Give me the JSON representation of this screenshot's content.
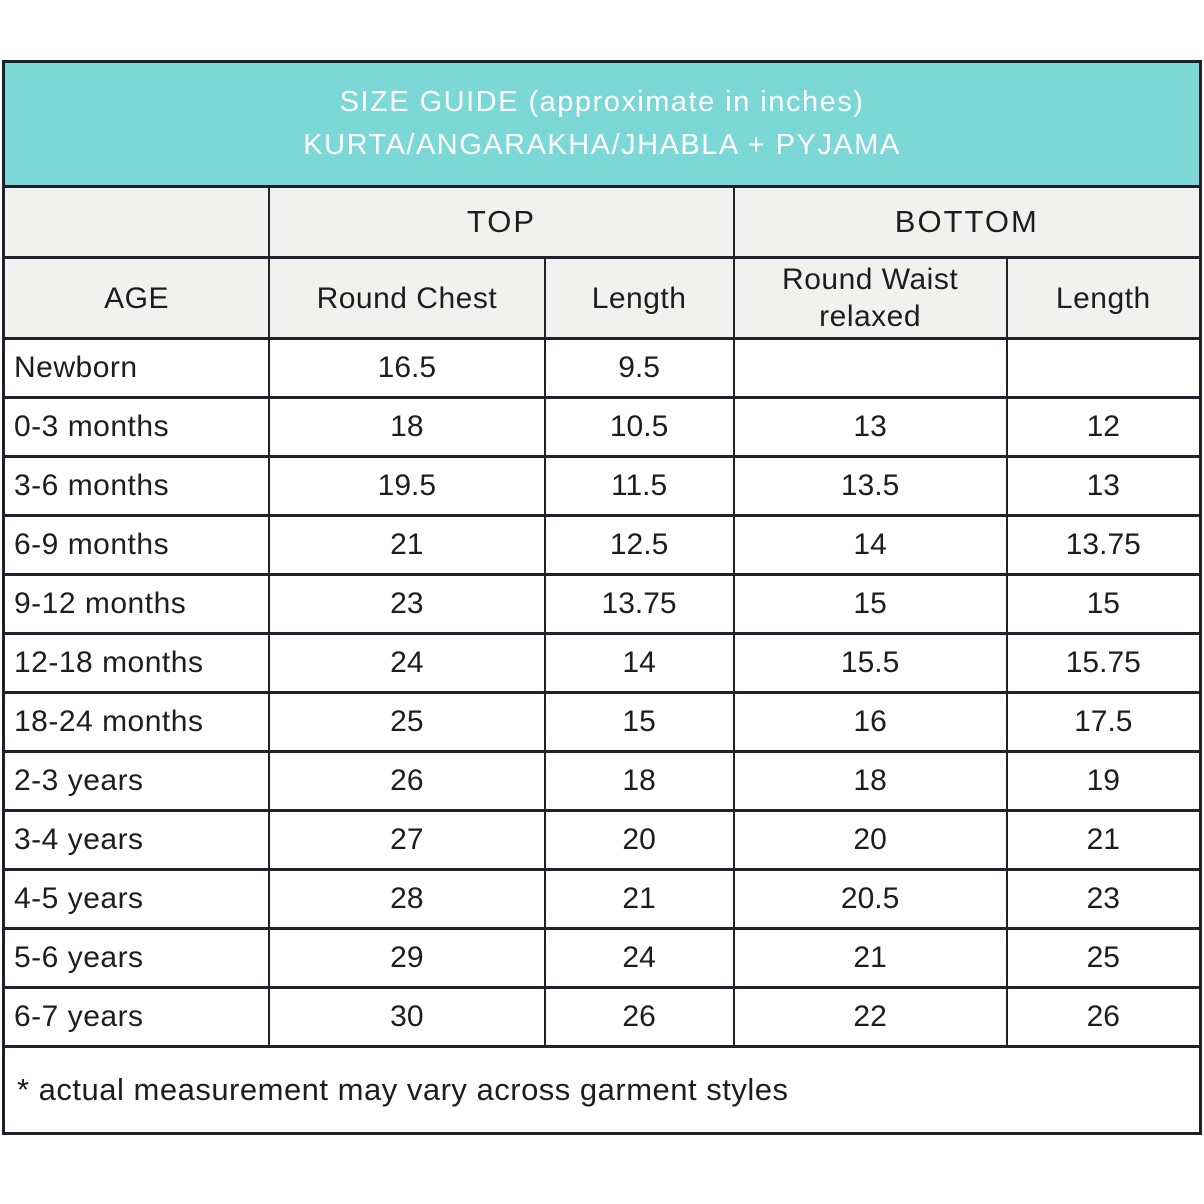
{
  "colors": {
    "accent": "#7bd8d6",
    "header_bg": "#f1f1f0",
    "border": "#21212b",
    "title_text": "#ffffff",
    "body_text": "#1d1d1f"
  },
  "title": {
    "line1": "SIZE GUIDE (approximate in inches)",
    "line2": "KURTA/ANGARAKHA/JHABLA + PYJAMA"
  },
  "footnote": "* actual measurement may vary across garment styles",
  "chart_data": {
    "type": "table",
    "title": "SIZE GUIDE (approximate in inches) KURTA/ANGARAKHA/JHABLA + PYJAMA",
    "column_groups": [
      {
        "label": "",
        "span": 1
      },
      {
        "label": "TOP",
        "span": 2
      },
      {
        "label": "BOTTOM",
        "span": 2
      }
    ],
    "groups": {
      "top": "TOP",
      "bottom": "BOTTOM"
    },
    "columns": [
      "AGE",
      "Round Chest",
      "Length",
      "Round Waist relaxed",
      "Length"
    ],
    "rows": [
      [
        "Newborn",
        "16.5",
        "9.5",
        "",
        ""
      ],
      [
        "0-3 months",
        "18",
        "10.5",
        "13",
        "12"
      ],
      [
        "3-6 months",
        "19.5",
        "11.5",
        "13.5",
        "13"
      ],
      [
        "6-9 months",
        "21",
        "12.5",
        "14",
        "13.75"
      ],
      [
        "9-12 months",
        "23",
        "13.75",
        "15",
        "15"
      ],
      [
        "12-18 months",
        "24",
        "14",
        "15.5",
        "15.75"
      ],
      [
        "18-24 months",
        "25",
        "15",
        "16",
        "17.5"
      ],
      [
        "2-3 years",
        "26",
        "18",
        "18",
        "19"
      ],
      [
        "3-4 years",
        "27",
        "20",
        "20",
        "21"
      ],
      [
        "4-5 years",
        "28",
        "21",
        "20.5",
        "23"
      ],
      [
        "5-6 years",
        "29",
        "24",
        "21",
        "25"
      ],
      [
        "6-7 years",
        "30",
        "26",
        "22",
        "26"
      ]
    ],
    "footnote": "* actual measurement may vary across garment styles"
  }
}
